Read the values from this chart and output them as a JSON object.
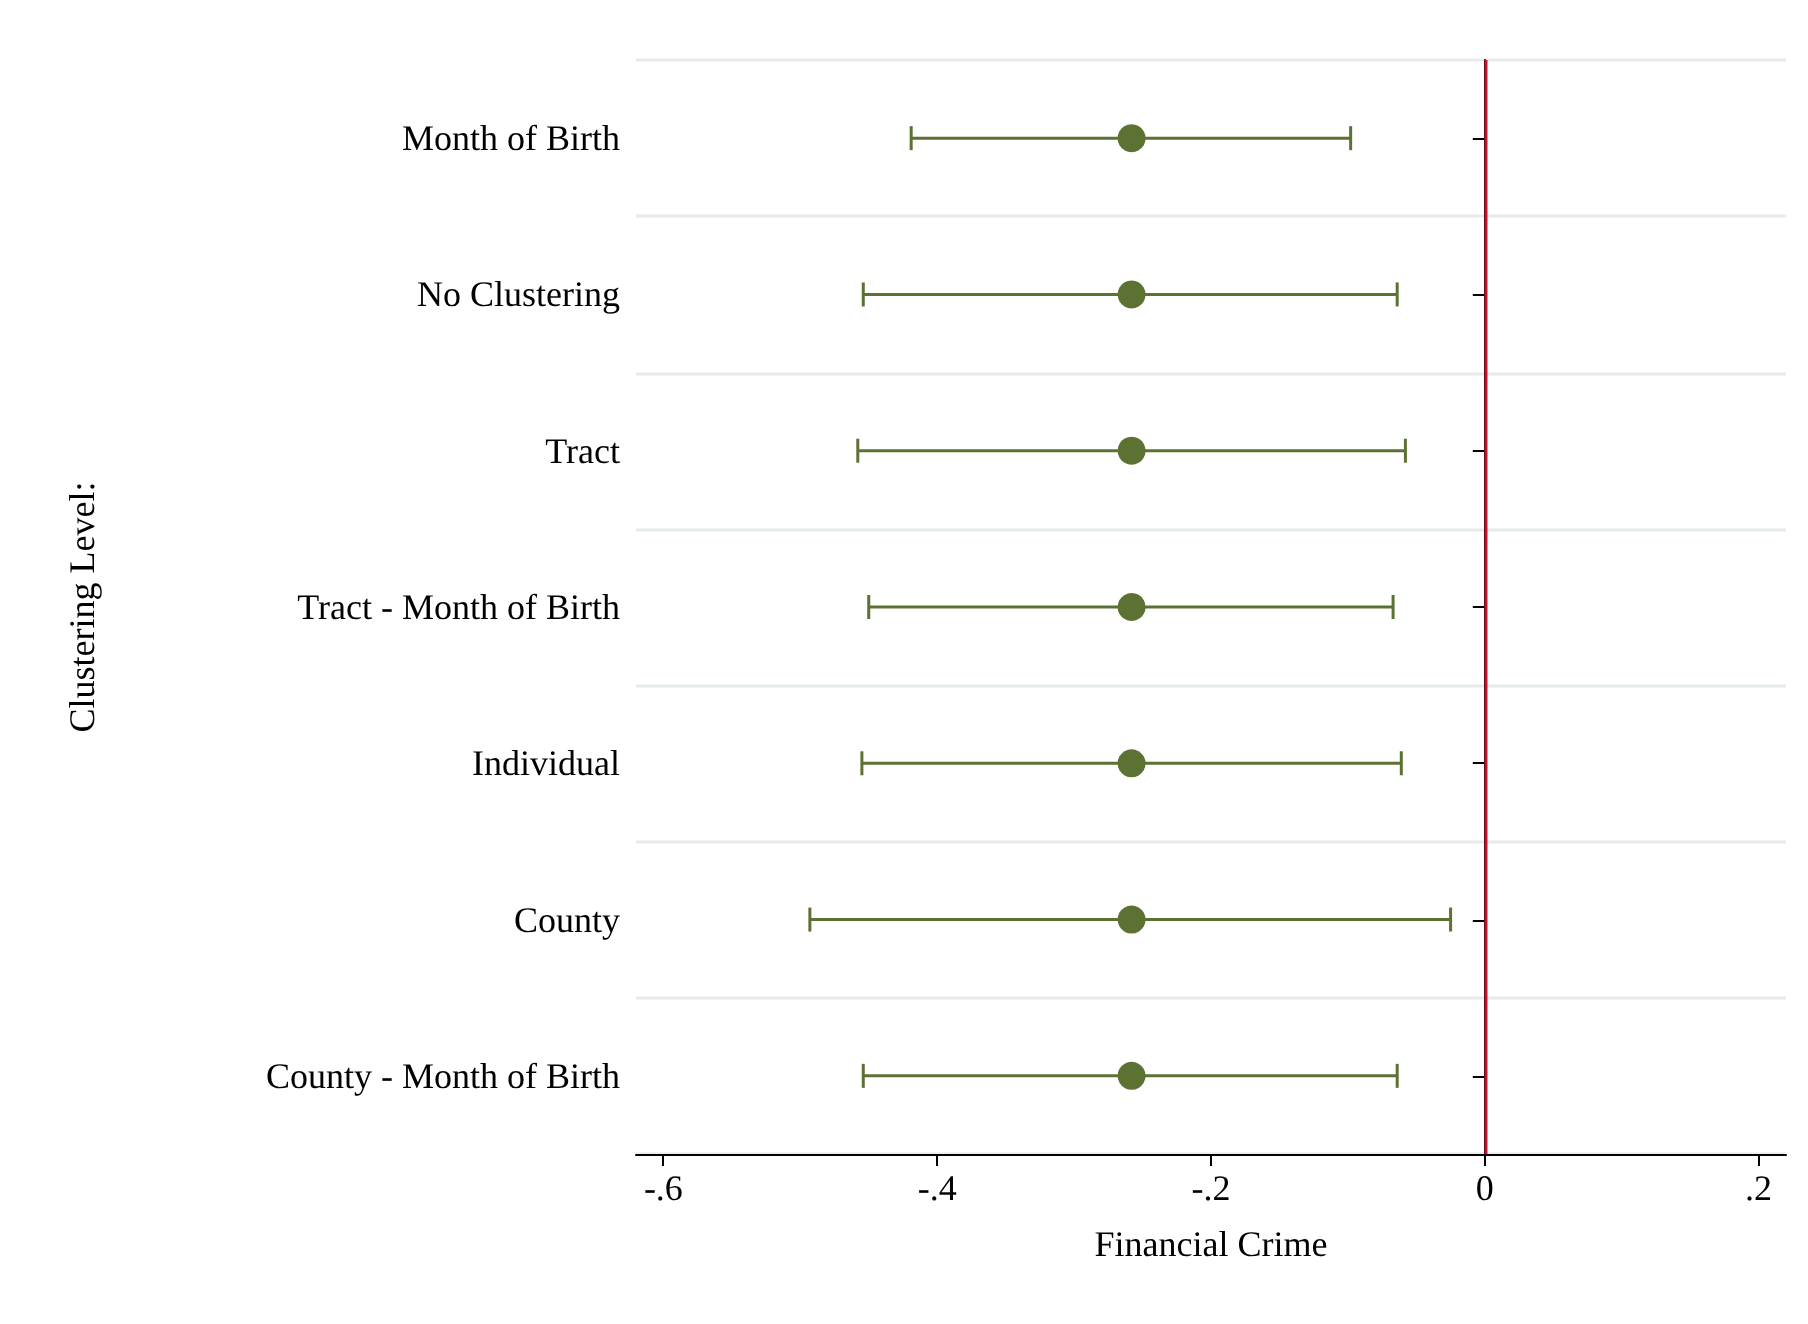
{
  "chart_data": {
    "type": "scatter",
    "orientation": "horizontal",
    "xlabel": "Financial Crime",
    "ylabel": "Clustering Level:",
    "categories": [
      "Month of Birth",
      "No Clustering",
      "Tract",
      "Tract - Month of Birth",
      "Individual",
      "County",
      "County - Month of Birth"
    ],
    "values": [
      -0.258,
      -0.258,
      -0.258,
      -0.258,
      -0.258,
      -0.258,
      -0.258
    ],
    "errors": [
      [
        -0.419,
        -0.098
      ],
      [
        -0.454,
        -0.064
      ],
      [
        -0.458,
        -0.058
      ],
      [
        -0.45,
        -0.067
      ],
      [
        -0.455,
        -0.061
      ],
      [
        -0.493,
        -0.025
      ],
      [
        -0.454,
        -0.064
      ]
    ],
    "color": "#5b7233",
    "marker": "circle",
    "xlim": [
      -0.62,
      0.22
    ],
    "xticks": [
      {
        "value": -0.6,
        "label": "-.6"
      },
      {
        "value": -0.4,
        "label": "-.4"
      },
      {
        "value": -0.2,
        "label": "-.2"
      },
      {
        "value": 0,
        "label": "0"
      },
      {
        "value": 0.2,
        "label": ".2"
      }
    ],
    "ref_lines": [
      {
        "axis": "x",
        "value": 0,
        "color": "#c8102e"
      }
    ],
    "grid": "y"
  }
}
